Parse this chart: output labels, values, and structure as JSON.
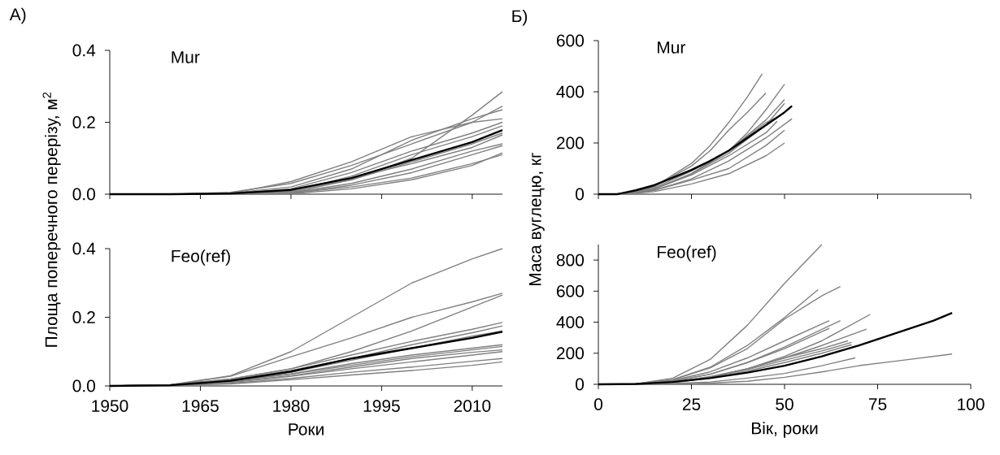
{
  "chart_data": [
    {
      "type": "line",
      "title": "Mur",
      "annotations": [
        "А)"
      ],
      "x": [
        1950,
        1960,
        1970,
        1980,
        1990,
        2000,
        2010,
        2015
      ],
      "xlim": [
        1950,
        2015
      ],
      "xticks": [
        1950,
        1965,
        1980,
        1995,
        2010
      ],
      "ylim": [
        0,
        0.4
      ],
      "yticks": [
        {
          "value": 0,
          "label": "0.0"
        },
        0.2,
        0.4
      ],
      "tick_labels": "y",
      "series": [
        {
          "color": "#808080",
          "values": [
            0,
            0,
            0.003,
            0.01,
            0.04,
            0.1,
            0.22,
            0.285
          ]
        },
        {
          "color": "#808080",
          "values": [
            0,
            0,
            0.005,
            0.03,
            0.08,
            0.14,
            0.2,
            0.245
          ]
        },
        {
          "color": "#808080",
          "values": [
            0,
            0,
            0.003,
            0.02,
            0.07,
            0.15,
            0.21,
            0.235
          ]
        },
        {
          "color": "#808080",
          "values": [
            0,
            0,
            0.002,
            0.035,
            0.09,
            0.16,
            0.2,
            0.21
          ]
        },
        {
          "color": "#808080",
          "values": [
            0,
            0,
            0.001,
            0.015,
            0.06,
            0.12,
            0.17,
            0.2
          ]
        },
        {
          "color": "#808080",
          "values": [
            0,
            0,
            0,
            0.008,
            0.05,
            0.11,
            0.16,
            0.19
          ]
        },
        {
          "color": "#808080",
          "values": [
            0,
            0,
            0,
            0.005,
            0.04,
            0.09,
            0.14,
            0.17
          ]
        },
        {
          "color": "#808080",
          "values": [
            0,
            0,
            0.002,
            0.012,
            0.045,
            0.085,
            0.13,
            0.165
          ]
        },
        {
          "color": "#808080",
          "values": [
            0,
            0,
            0,
            0.004,
            0.03,
            0.07,
            0.12,
            0.14
          ]
        },
        {
          "color": "#808080",
          "values": [
            0,
            0,
            0,
            0.002,
            0.025,
            0.06,
            0.11,
            0.135
          ]
        },
        {
          "color": "#808080",
          "values": [
            0,
            0,
            0,
            0.001,
            0.015,
            0.04,
            0.08,
            0.115
          ]
        },
        {
          "color": "#808080",
          "values": [
            0,
            0,
            0,
            0.003,
            0.02,
            0.045,
            0.085,
            0.11
          ]
        },
        {
          "color": "#000000",
          "values": [
            0,
            0,
            0.002,
            0.012,
            0.045,
            0.095,
            0.145,
            0.178
          ]
        }
      ]
    },
    {
      "type": "line",
      "title": "Feo(ref)",
      "xlabel": "Роки",
      "ylabel": "Площа поперечного перерізу, м$^{2}$",
      "x": [
        1950,
        1960,
        1970,
        1980,
        1990,
        2000,
        2010,
        2015
      ],
      "xlim": [
        1950,
        2015
      ],
      "xticks": [
        1950,
        1965,
        1980,
        1995,
        2010
      ],
      "ylim": [
        0,
        0.4
      ],
      "yticks": [
        {
          "value": 0,
          "label": "0.0"
        },
        0.2,
        0.4
      ],
      "series": [
        {
          "color": "#808080",
          "values": [
            0,
            0.003,
            0.03,
            0.1,
            0.2,
            0.3,
            0.37,
            0.4
          ]
        },
        {
          "color": "#808080",
          "values": [
            0,
            0.003,
            0.028,
            0.085,
            0.14,
            0.2,
            0.245,
            0.27
          ]
        },
        {
          "color": "#808080",
          "values": [
            0,
            0.003,
            0.02,
            0.05,
            0.1,
            0.16,
            0.23,
            0.265
          ]
        },
        {
          "color": "#808080",
          "values": [
            0,
            0.003,
            0.02,
            0.05,
            0.09,
            0.13,
            0.165,
            0.185
          ]
        },
        {
          "color": "#808080",
          "values": [
            0,
            0.003,
            0.018,
            0.045,
            0.08,
            0.12,
            0.155,
            0.175
          ]
        },
        {
          "color": "#808080",
          "values": [
            0,
            0.003,
            0.017,
            0.04,
            0.075,
            0.11,
            0.145,
            0.16
          ]
        },
        {
          "color": "#808080",
          "values": [
            0,
            0.002,
            0.015,
            0.035,
            0.065,
            0.09,
            0.11,
            0.12
          ]
        },
        {
          "color": "#808080",
          "values": [
            0,
            0.002,
            0.014,
            0.035,
            0.06,
            0.085,
            0.105,
            0.115
          ]
        },
        {
          "color": "#808080",
          "values": [
            0,
            0.002,
            0.012,
            0.03,
            0.055,
            0.08,
            0.098,
            0.105
          ]
        },
        {
          "color": "#808080",
          "values": [
            0,
            0.002,
            0.01,
            0.028,
            0.05,
            0.07,
            0.09,
            0.1
          ]
        },
        {
          "color": "#808080",
          "values": [
            0,
            0.002,
            0.008,
            0.022,
            0.04,
            0.055,
            0.072,
            0.08
          ]
        },
        {
          "color": "#808080",
          "values": [
            0,
            0.001,
            0.006,
            0.018,
            0.032,
            0.045,
            0.06,
            0.07
          ]
        },
        {
          "color": "#000000",
          "values": [
            0,
            0.002,
            0.015,
            0.042,
            0.08,
            0.11,
            0.14,
            0.158
          ]
        }
      ]
    },
    {
      "type": "line",
      "title": "Mur",
      "annotations": [
        "Б)"
      ],
      "xlim": [
        0,
        100
      ],
      "xticks": [
        0,
        25,
        50,
        75,
        100
      ],
      "ylim": [
        0,
        600
      ],
      "yticks": [
        0,
        200,
        400,
        600
      ],
      "tick_labels": "y",
      "series": [
        {
          "color": "#808080",
          "x": [
            7,
            15,
            25,
            30,
            35,
            40,
            44
          ],
          "values": [
            0,
            30,
            120,
            190,
            280,
            380,
            470
          ]
        },
        {
          "color": "#808080",
          "x": [
            7,
            15,
            25,
            30,
            35,
            40,
            45
          ],
          "values": [
            0,
            30,
            110,
            170,
            250,
            320,
            395
          ]
        },
        {
          "color": "#808080",
          "x": [
            7,
            15,
            25,
            35,
            40,
            45,
            50
          ],
          "values": [
            0,
            25,
            90,
            170,
            240,
            330,
            430
          ]
        },
        {
          "color": "#808080",
          "x": [
            7,
            15,
            25,
            35,
            45,
            50
          ],
          "values": [
            0,
            20,
            80,
            170,
            290,
            370
          ]
        },
        {
          "color": "#808080",
          "x": [
            7,
            15,
            25,
            35,
            45,
            50
          ],
          "values": [
            0,
            20,
            80,
            160,
            270,
            355
          ]
        },
        {
          "color": "#808080",
          "x": [
            7,
            15,
            25,
            35,
            45,
            48
          ],
          "values": [
            0,
            20,
            80,
            170,
            280,
            300
          ]
        },
        {
          "color": "#808080",
          "x": [
            7,
            15,
            25,
            35,
            45,
            52
          ],
          "values": [
            0,
            15,
            60,
            130,
            220,
            295
          ]
        },
        {
          "color": "#808080",
          "x": [
            7,
            15,
            25,
            35,
            45,
            50
          ],
          "values": [
            0,
            10,
            40,
            80,
            150,
            200
          ]
        },
        {
          "color": "#808080",
          "x": [
            7,
            15,
            25,
            35,
            45,
            50
          ],
          "values": [
            0,
            15,
            55,
            100,
            190,
            250
          ]
        },
        {
          "color": "#808080",
          "x": [
            7,
            15,
            25,
            35,
            45,
            48
          ],
          "values": [
            0,
            20,
            75,
            150,
            240,
            285
          ]
        },
        {
          "color": "#000000",
          "x": [
            0,
            5,
            10,
            15,
            20,
            25,
            30,
            35,
            40,
            45,
            50,
            52
          ],
          "values": [
            0,
            0,
            15,
            35,
            65,
            95,
            130,
            170,
            220,
            270,
            320,
            345
          ]
        }
      ]
    },
    {
      "type": "line",
      "title": "Feo(ref)",
      "xlabel": "Вік, роки",
      "ylabel": "Маса вуглецю, кг",
      "xlim": [
        0,
        100
      ],
      "xticks": [
        0,
        25,
        50,
        75,
        100
      ],
      "ylim": [
        0,
        900
      ],
      "yticks": [
        0,
        200,
        400,
        600,
        800
      ],
      "series": [
        {
          "color": "#808080",
          "x": [
            0,
            10,
            20,
            30,
            40,
            50,
            60
          ],
          "values": [
            0,
            3,
            40,
            160,
            380,
            650,
            900
          ]
        },
        {
          "color": "#808080",
          "x": [
            0,
            10,
            20,
            30,
            40,
            50,
            59
          ],
          "values": [
            0,
            3,
            30,
            110,
            250,
            430,
            610
          ]
        },
        {
          "color": "#808080",
          "x": [
            0,
            10,
            20,
            30,
            40,
            50,
            60,
            65
          ],
          "values": [
            0,
            3,
            30,
            105,
            230,
            420,
            570,
            630
          ]
        },
        {
          "color": "#808080",
          "x": [
            0,
            10,
            20,
            30,
            40,
            50,
            62
          ],
          "values": [
            0,
            3,
            25,
            80,
            170,
            280,
            410
          ]
        },
        {
          "color": "#808080",
          "x": [
            0,
            10,
            20,
            30,
            40,
            50,
            65
          ],
          "values": [
            0,
            3,
            20,
            65,
            140,
            240,
            410
          ]
        },
        {
          "color": "#808080",
          "x": [
            0,
            10,
            20,
            30,
            40,
            50,
            60,
            73
          ],
          "values": [
            0,
            2,
            15,
            45,
            100,
            180,
            280,
            450
          ]
        },
        {
          "color": "#808080",
          "x": [
            0,
            10,
            20,
            30,
            40,
            50,
            60,
            72
          ],
          "values": [
            0,
            2,
            15,
            45,
            100,
            170,
            250,
            355
          ]
        },
        {
          "color": "#808080",
          "x": [
            0,
            10,
            20,
            30,
            40,
            50,
            62
          ],
          "values": [
            0,
            3,
            20,
            65,
            140,
            230,
            360
          ]
        },
        {
          "color": "#808080",
          "x": [
            0,
            10,
            20,
            30,
            40,
            50,
            60,
            67
          ],
          "values": [
            0,
            2,
            15,
            50,
            100,
            170,
            230,
            280
          ]
        },
        {
          "color": "#808080",
          "x": [
            0,
            10,
            20,
            30,
            40,
            50,
            60,
            68
          ],
          "values": [
            0,
            2,
            12,
            40,
            85,
            140,
            200,
            255
          ]
        },
        {
          "color": "#808080",
          "x": [
            0,
            10,
            20,
            30,
            40,
            50,
            60,
            69
          ],
          "values": [
            0,
            1,
            5,
            15,
            40,
            70,
            120,
            170
          ]
        },
        {
          "color": "#808080",
          "x": [
            0,
            10,
            20,
            30,
            40,
            50,
            60,
            70,
            80,
            95
          ],
          "values": [
            0,
            0,
            2,
            8,
            20,
            45,
            80,
            120,
            150,
            195
          ]
        },
        {
          "color": "#808080",
          "x": [
            0,
            10,
            20,
            30,
            40,
            50,
            60,
            68
          ],
          "values": [
            0,
            2,
            15,
            45,
            95,
            155,
            215,
            270
          ]
        },
        {
          "color": "#000000",
          "x": [
            0,
            10,
            20,
            30,
            40,
            50,
            60,
            70,
            80,
            90,
            95
          ],
          "values": [
            0,
            2,
            15,
            40,
            75,
            120,
            180,
            250,
            330,
            410,
            460
          ]
        }
      ]
    }
  ]
}
